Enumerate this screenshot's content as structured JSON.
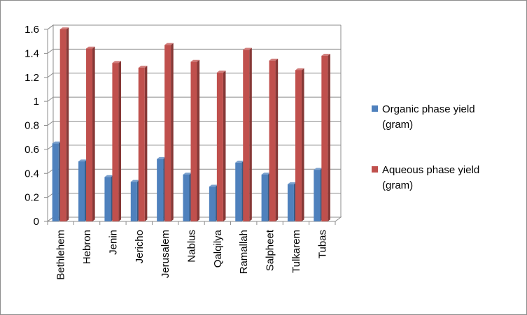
{
  "chart_data": {
    "type": "bar",
    "style": "3d-clustered-column",
    "categories": [
      "Bethlehem",
      "Hebron",
      "Jenin",
      "Jericho",
      "Jerusalem",
      "Nablus",
      "Qalqilya",
      "Ramallah",
      "Salpheet",
      "Tulkarem",
      "Tubas"
    ],
    "series": [
      {
        "name": "Organic phase yield (gram)",
        "name_lines": [
          "Organic phase yield",
          "(gram)"
        ],
        "color": "#4f81bd",
        "values": [
          0.65,
          0.5,
          0.37,
          0.33,
          0.52,
          0.39,
          0.29,
          0.49,
          0.39,
          0.31,
          0.43
        ]
      },
      {
        "name": "Aqueous  phase yield (gram)",
        "name_lines": [
          "Aqueous  phase yield",
          "(gram)"
        ],
        "color": "#c0504d",
        "values": [
          1.6,
          1.44,
          1.32,
          1.28,
          1.47,
          1.33,
          1.24,
          1.43,
          1.34,
          1.26,
          1.38
        ]
      }
    ],
    "ylim": [
      0,
      1.6
    ],
    "yticks": [
      "0",
      "0.2",
      "0.4",
      "0.6",
      "0.8",
      "1",
      "1.2",
      "1.4",
      "1.6"
    ],
    "grid": true,
    "legend_position": "right",
    "title": "",
    "xlabel": "",
    "ylabel": ""
  }
}
